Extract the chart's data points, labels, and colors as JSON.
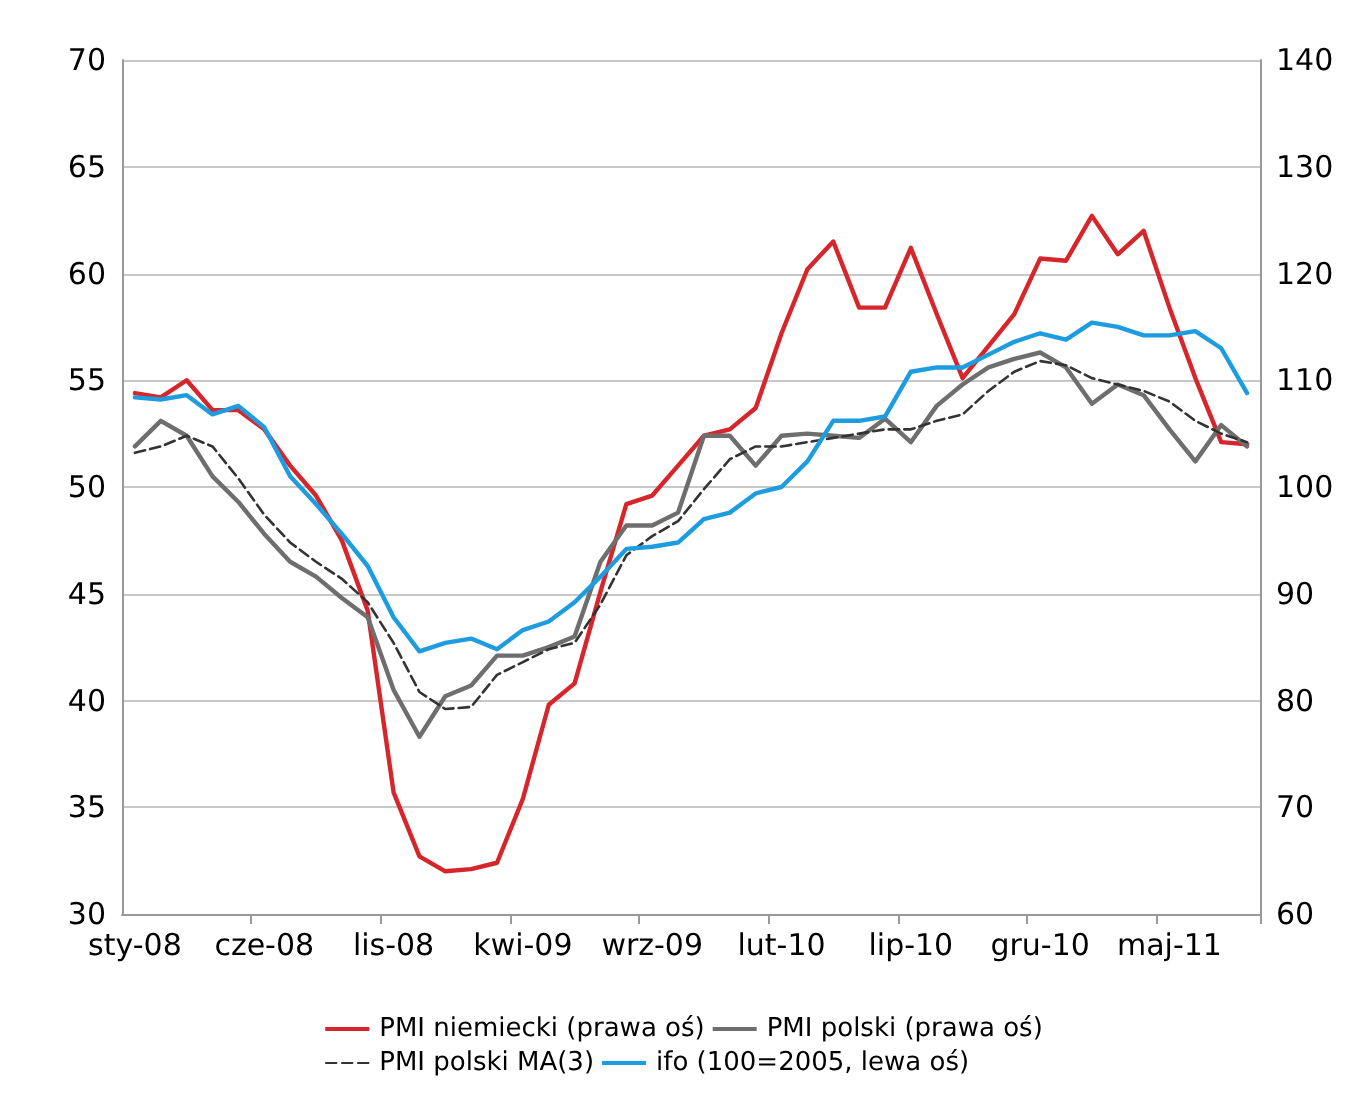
{
  "chart_data": {
    "type": "line",
    "categories": [
      "sty-08",
      null,
      null,
      null,
      null,
      "cze-08",
      null,
      null,
      null,
      null,
      "lis-08",
      null,
      null,
      null,
      null,
      "kwi-09",
      null,
      null,
      null,
      null,
      "wrz-09",
      null,
      null,
      null,
      null,
      "lut-10",
      null,
      null,
      null,
      null,
      "lip-10",
      null,
      null,
      null,
      null,
      "gru-10",
      null,
      null,
      null,
      null,
      "maj-11",
      null,
      null,
      null
    ],
    "series": [
      {
        "name": "PMI niemiecki (prawa oś)",
        "color": "#d7262b",
        "axis": "y2",
        "line_style": "solid",
        "values": [
          108.8,
          108.4,
          110,
          107.2,
          107.2,
          105.4,
          102,
          99.2,
          95,
          88.4,
          71.4,
          65.4,
          64,
          64.2,
          64.8,
          70.8,
          79.6,
          81.6,
          90.2,
          98.4,
          99.2,
          102,
          104.8,
          105.4,
          107.4,
          114.4,
          120.4,
          123,
          116.8,
          116.8,
          122.4,
          116.2,
          110.2,
          113.2,
          116.2,
          121.4,
          121.2,
          125.4,
          121.8,
          124,
          116.8,
          110.2,
          104.2,
          104
        ]
      },
      {
        "name": "PMI polski (prawa oś)",
        "color": "#6e6e6e",
        "axis": "y2",
        "line_style": "solid",
        "values": [
          103.8,
          106.2,
          104.8,
          101,
          98.6,
          95.6,
          93,
          91.6,
          89.6,
          87.8,
          81,
          76.6,
          80.4,
          81.4,
          84.2,
          84.2,
          85,
          86,
          93,
          96.4,
          96.4,
          97.6,
          104.8,
          104.8,
          102,
          104.8,
          105,
          104.8,
          104.6,
          106.4,
          104.2,
          107.6,
          109.6,
          111.2,
          112,
          112.6,
          111.2,
          107.8,
          109.6,
          108.6,
          105.4,
          102.4,
          105.8,
          103.8
        ]
      },
      {
        "name": "PMI polski MA(3)",
        "color": "#333333",
        "axis": "y2",
        "line_style": "dashed",
        "values": [
          103.2,
          103.8,
          104.8,
          103.8,
          100.8,
          97.4,
          94.8,
          93,
          91.4,
          89.2,
          85.4,
          80.8,
          79.2,
          79.4,
          82.4,
          83.6,
          84.8,
          85.4,
          89,
          93.6,
          95.4,
          96.8,
          99.8,
          102.6,
          103.8,
          103.8,
          104.2,
          104.6,
          105,
          105.4,
          105.4,
          106.2,
          106.8,
          109,
          110.8,
          111.8,
          111.4,
          110.2,
          109.6,
          109,
          108,
          106.2,
          105,
          104.2
        ]
      },
      {
        "name": "ifo (100=2005, lewa oś)",
        "color": "#1e9ce0",
        "axis": "y",
        "line_style": "solid",
        "values": [
          54.2,
          54.1,
          54.3,
          53.4,
          53.8,
          52.8,
          50.5,
          49.2,
          47.8,
          46.3,
          43.9,
          42.3,
          42.7,
          42.9,
          42.4,
          43.3,
          43.7,
          44.6,
          45.8,
          47.1,
          47.2,
          47.4,
          48.5,
          48.8,
          49.7,
          50,
          51.2,
          53.1,
          53.1,
          53.3,
          55.4,
          55.6,
          55.6,
          56.2,
          56.8,
          57.2,
          56.9,
          57.7,
          57.5,
          57.1,
          57.1,
          57.3,
          56.5,
          54.4
        ]
      }
    ],
    "ylim": [
      30,
      70
    ],
    "yticks": [
      30,
      35,
      40,
      45,
      50,
      55,
      60,
      65,
      70
    ],
    "y2lim": [
      60,
      140
    ],
    "y2ticks": [
      60,
      70,
      80,
      90,
      100,
      110,
      120,
      130,
      140
    ],
    "grid": "y",
    "legend": "bottom",
    "marker": "none"
  }
}
